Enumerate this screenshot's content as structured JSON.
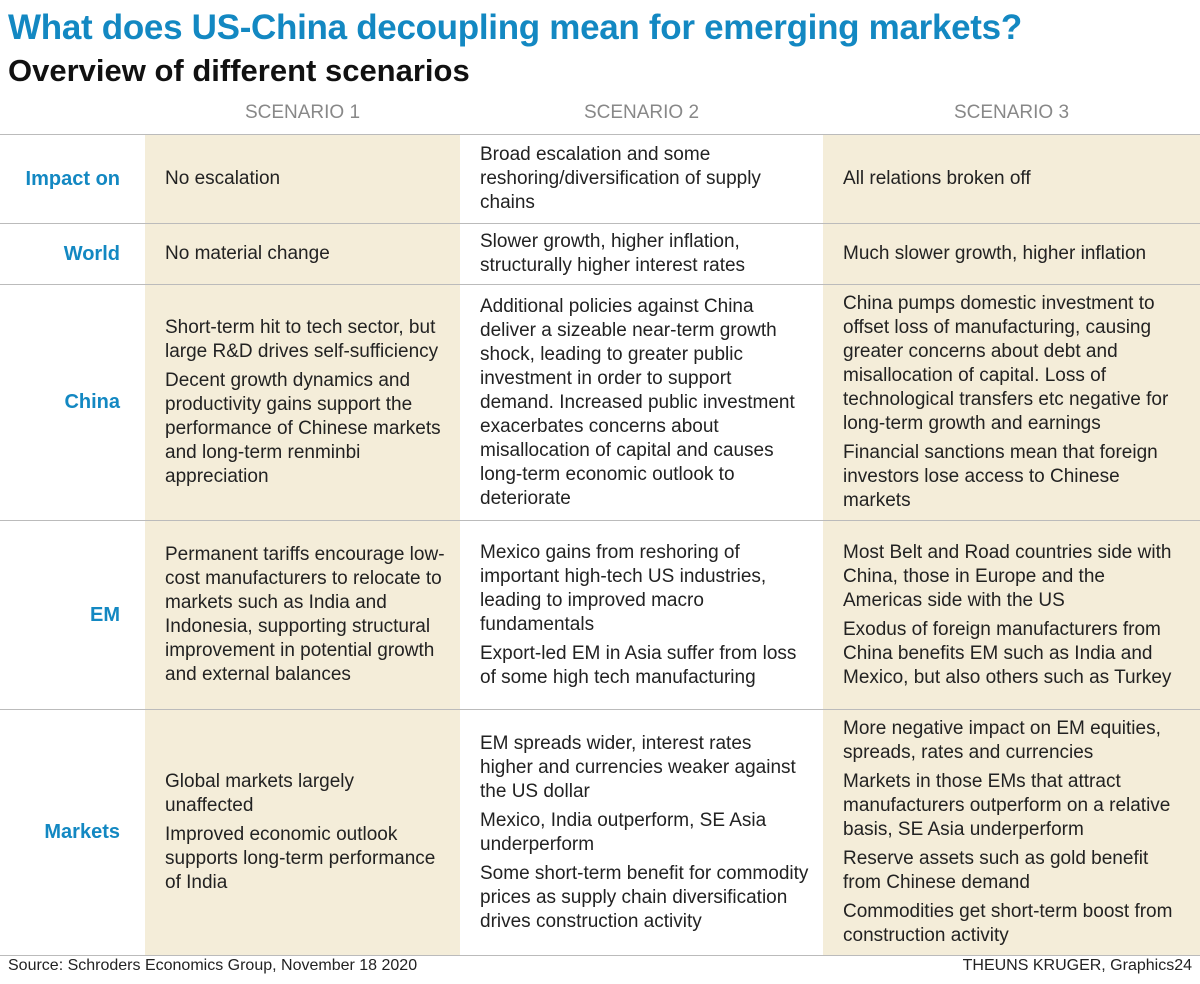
{
  "header": {
    "title": "What does US-China decoupling mean for emerging markets?",
    "subtitle": "Overview of different scenarios"
  },
  "table": {
    "columns": [
      "SCENARIO 1",
      "SCENARIO 2",
      "SCENARIO 3"
    ],
    "rows": [
      {
        "label": "Impact on",
        "cells": [
          [
            "No escalation"
          ],
          [
            "Broad escalation and some reshoring/diversification of supply chains"
          ],
          [
            "All relations broken off"
          ]
        ]
      },
      {
        "label": "World",
        "cells": [
          [
            "No material change"
          ],
          [
            "Slower growth, higher inflation, structurally higher interest rates"
          ],
          [
            "Much slower growth, higher inflation"
          ]
        ]
      },
      {
        "label": "China",
        "cells": [
          [
            "Short-term hit to tech sector, but large R&D drives self-sufficiency",
            "Decent growth dynamics and productivity gains support the performance of Chinese markets and long-term renminbi appreciation"
          ],
          [
            "Additional policies against China deliver a sizeable near-term growth shock, leading to greater public investment in order to support demand. Increased public investment exacerbates concerns about misallocation of capital and causes long-term economic outlook to deteriorate"
          ],
          [
            "China pumps domestic investment to offset loss of manufacturing, causing greater concerns about debt and misallocation of capital. Loss of technological transfers etc negative for long-term growth and earnings",
            "Financial sanctions mean that foreign investors lose access to Chinese markets"
          ]
        ]
      },
      {
        "label": "EM",
        "cells": [
          [
            "Permanent tariffs encourage low-cost manufacturers to relocate to markets such as India and Indonesia, supporting structural improvement in potential growth and external balances"
          ],
          [
            "Mexico gains from reshoring of important high-tech US industries, leading to improved macro fundamentals",
            "Export-led EM in Asia suffer from loss of some high tech manufacturing"
          ],
          [
            "Most Belt and Road countries side with China, those in Europe and the Americas side with the US",
            "Exodus of foreign manufacturers from China benefits EM such as India and Mexico, but also others such as Turkey"
          ]
        ]
      },
      {
        "label": "Markets",
        "cells": [
          [
            "Global markets largely unaffected",
            "Improved economic outlook supports long-term performance of India"
          ],
          [
            "EM spreads wider, interest rates higher and currencies weaker against the US dollar",
            "Mexico, India outperform, SE Asia underperform",
            "Some short-term benefit for commodity prices as supply chain diversification drives construction activity"
          ],
          [
            "More negative impact on EM equities, spreads, rates and currencies",
            "Markets in those EMs that attract manufacturers outperform on a relative basis, SE Asia underperform",
            "Reserve assets such as gold benefit from Chinese demand",
            "Commodities get short-term boost from construction activity"
          ]
        ]
      }
    ]
  },
  "footer": {
    "source": "Source: Schroders Economics Group, November 18 2020",
    "credit": "THEUNS KRUGER, Graphics24"
  }
}
